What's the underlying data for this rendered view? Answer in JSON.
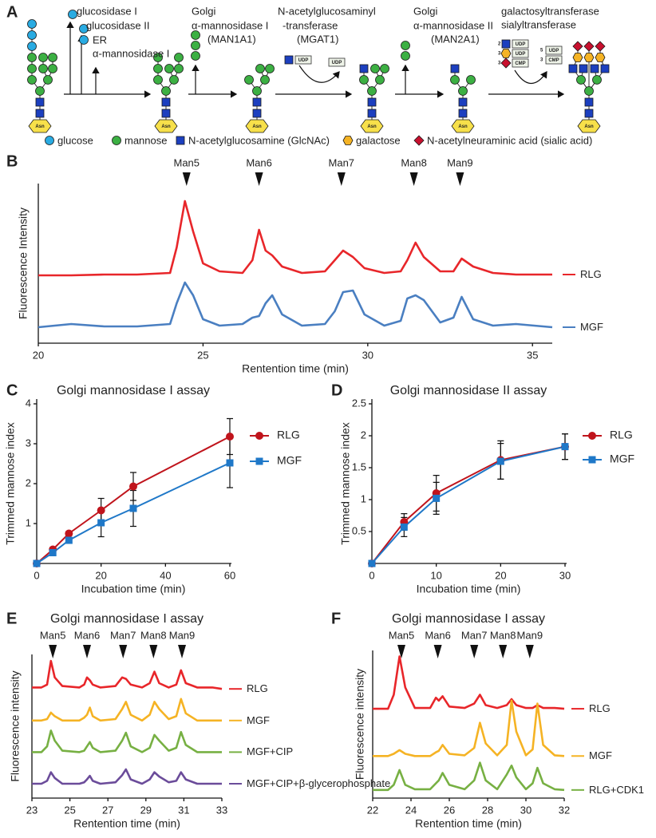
{
  "diagram": {
    "panel": "A",
    "steps": [
      [
        "glucosidase I",
        "glucosidase II",
        "ER",
        "α-mannosidase I"
      ],
      [
        "Golgi",
        "α-mannosidase I",
        "(MAN1A1)"
      ],
      [
        "N-acetylglucosaminyl",
        "-transferase",
        "(MGAT1)"
      ],
      [
        "Golgi",
        "α-mannosidase II",
        "(MAN2A1)"
      ],
      [
        "galactosyltransferase",
        "sialyltransferase"
      ]
    ],
    "residue": "Asn",
    "donors": {
      "mgat1": {
        "in": "UDP",
        "out": "UDP"
      },
      "glycosyl": {
        "in": [
          [
            "2",
            "UDP"
          ],
          [
            "3",
            "UDP"
          ],
          [
            "3",
            "CMP"
          ]
        ],
        "out": [
          [
            "5",
            "UDP"
          ],
          [
            "3",
            "CMP"
          ]
        ]
      }
    },
    "legend": [
      "glucose",
      "mannose",
      "N-acetylglucosamine (GlcNAc)",
      "galactose",
      "N-acetylneuraminic acid (sialic acid)"
    ]
  },
  "chart_data": [
    {
      "type": "chromatogram",
      "panel": "B",
      "xlabel": "Rentention time (min)",
      "ylabel": "Fluorescence Intensity",
      "xlim": [
        20,
        35.6
      ],
      "xticks": [
        20,
        25,
        30,
        35
      ],
      "ylim": [
        0,
        100
      ],
      "legend": "trace-end",
      "peaks": [
        {
          "label": "Man5",
          "x": 24.5
        },
        {
          "label": "Man6",
          "x": 26.7
        },
        {
          "label": "Man7",
          "x": 29.2
        },
        {
          "label": "Man8",
          "x": 31.4
        },
        {
          "label": "Man9",
          "x": 32.8
        }
      ],
      "x": [
        20,
        21,
        22,
        23,
        24,
        24.2,
        24.45,
        24.7,
        25,
        25.5,
        26.2,
        26.5,
        26.7,
        26.9,
        27.1,
        27.4,
        28,
        28.7,
        29,
        29.25,
        29.55,
        29.9,
        30.5,
        31,
        31.2,
        31.45,
        31.7,
        32.2,
        32.6,
        32.85,
        33.2,
        33.8,
        34.5,
        35.6
      ],
      "series": [
        {
          "name": "RLG",
          "color": "#e8262a",
          "values": [
            42.5,
            42.5,
            43,
            43,
            44,
            60,
            89,
            70,
            50,
            45,
            44,
            52,
            71,
            58,
            55,
            48,
            44,
            45,
            52,
            58,
            54,
            47,
            44,
            45,
            52,
            63,
            54,
            45,
            45,
            53,
            48,
            44,
            43,
            43
          ]
        },
        {
          "name": "MGF",
          "color": "#4a7fc1",
          "values": [
            10,
            12,
            10.5,
            10.5,
            12,
            25,
            38,
            30,
            15,
            11,
            12,
            16,
            17,
            25,
            30,
            18,
            11,
            12,
            20,
            32,
            33,
            18,
            11,
            14,
            28,
            30,
            27,
            13,
            16,
            29,
            15,
            11,
            12,
            10
          ]
        }
      ]
    },
    {
      "type": "line",
      "panel": "C",
      "title": "Golgi mannosidase I assay",
      "xlabel": "Incubation time (min)",
      "ylabel": "Trimmed mannose index",
      "xlim": [
        0,
        60
      ],
      "xticks": [
        0,
        20,
        40,
        60
      ],
      "ylim": [
        0,
        4
      ],
      "yticks": [
        1,
        2,
        3,
        4
      ],
      "legend": "right",
      "x": [
        0,
        5,
        10,
        20,
        30,
        60
      ],
      "series": [
        {
          "name": "RLG",
          "color": "#c0141c",
          "marker": "circle",
          "values": [
            0,
            0.35,
            0.75,
            1.33,
            1.93,
            3.18
          ],
          "errors": [
            0,
            0.05,
            0.05,
            0.3,
            0.35,
            0.45
          ]
        },
        {
          "name": "MGF",
          "color": "#1f78c8",
          "marker": "square",
          "values": [
            0,
            0.27,
            0.58,
            1.02,
            1.38,
            2.52
          ],
          "errors": [
            0,
            0.03,
            0.05,
            0.35,
            0.45,
            0.62
          ]
        }
      ]
    },
    {
      "type": "line",
      "panel": "D",
      "title": "Golgi mannosidase II assay",
      "xlabel": "Incubation time (min)",
      "ylabel": "Trimmed mannose index",
      "xlim": [
        0,
        30
      ],
      "xticks": [
        0,
        10,
        20,
        30
      ],
      "ylim": [
        0,
        2.5
      ],
      "yticks": [
        0.5,
        1,
        1.5,
        2,
        2.5
      ],
      "legend": "right",
      "x": [
        0,
        5,
        10,
        20,
        30
      ],
      "series": [
        {
          "name": "RLG",
          "color": "#c0141c",
          "marker": "circle",
          "values": [
            0,
            0.65,
            1.1,
            1.62,
            1.83
          ],
          "errors": [
            0,
            0.13,
            0.28,
            0.3,
            0.2
          ]
        },
        {
          "name": "MGF",
          "color": "#1f78c8",
          "marker": "square",
          "values": [
            0,
            0.57,
            1.02,
            1.6,
            1.83
          ],
          "errors": [
            0,
            0.15,
            0.25,
            0.28,
            0.2
          ]
        }
      ]
    },
    {
      "type": "chromatogram",
      "panel": "E",
      "title": "Golgi mannosidase I assay",
      "xlabel": "Rentention time (min)",
      "ylabel": "Fluorescence intensity",
      "xlim": [
        23,
        33
      ],
      "xticks": [
        23,
        25,
        27,
        29,
        31,
        33
      ],
      "ylim": [
        0,
        100
      ],
      "legend": "trace-end",
      "peaks": [
        {
          "label": "Man5",
          "x": 24.1
        },
        {
          "label": "Man6",
          "x": 25.9
        },
        {
          "label": "Man7",
          "x": 27.8
        },
        {
          "label": "Man8",
          "x": 29.4
        },
        {
          "label": "Man9",
          "x": 30.9
        }
      ],
      "x": [
        23,
        23.5,
        23.8,
        24,
        24.2,
        24.6,
        25.5,
        25.75,
        25.9,
        26.05,
        26.2,
        26.6,
        27.4,
        27.75,
        27.95,
        28.2,
        28.8,
        29.2,
        29.45,
        29.7,
        30.2,
        30.6,
        30.85,
        31.1,
        31.7,
        32.5,
        33
      ],
      "series": [
        {
          "name": "RLG",
          "color": "#e8262a",
          "values": [
            77,
            77,
            79,
            95.5,
            84,
            78,
            77,
            79,
            84,
            82,
            79,
            77,
            78,
            84,
            83,
            79,
            77,
            80,
            88,
            80,
            77,
            79,
            89,
            80,
            77,
            77,
            76
          ]
        },
        {
          "name": "MGF",
          "color": "#f5b324",
          "values": [
            54,
            54,
            55,
            59.5,
            57,
            54,
            54,
            56,
            58,
            63,
            57,
            54,
            55,
            62,
            67,
            58,
            54,
            58,
            67,
            62,
            55,
            57,
            69,
            59,
            54,
            54,
            54
          ]
        },
        {
          "name": "MGF+CIP",
          "color": "#77b043",
          "values": [
            32,
            32,
            36,
            47,
            40,
            33,
            32,
            33,
            36,
            39,
            35,
            32,
            33,
            40,
            45.5,
            36,
            32,
            35,
            44,
            40,
            33,
            35,
            46,
            37,
            32,
            32,
            32
          ]
        },
        {
          "name": "MGF+CIP+β-glycerophosphate",
          "color": "#6b4c9a",
          "values": [
            10,
            10,
            12,
            18,
            14,
            10,
            10,
            11,
            13,
            15.5,
            12,
            10,
            11,
            16,
            20,
            13,
            10,
            13,
            18,
            15,
            11,
            12,
            18,
            13,
            10,
            10,
            10
          ]
        }
      ]
    },
    {
      "type": "chromatogram",
      "panel": "F",
      "title": "Golgi mannosidase I assay",
      "xlabel": "Rentention time (min)",
      "ylabel": "Fluorescence intensity",
      "xlim": [
        22,
        32
      ],
      "xticks": [
        22,
        24,
        26,
        28,
        30,
        32
      ],
      "ylim": [
        0,
        100
      ],
      "legend": "trace-end",
      "peaks": [
        {
          "label": "Man5",
          "x": 23.5
        },
        {
          "label": "Man6",
          "x": 25.4
        },
        {
          "label": "Man7",
          "x": 27.3
        },
        {
          "label": "Man8",
          "x": 28.8
        },
        {
          "label": "Man9",
          "x": 30.2
        }
      ],
      "x": [
        22,
        22.8,
        23.1,
        23.4,
        23.7,
        24.2,
        25,
        25.3,
        25.45,
        25.65,
        26,
        26.8,
        27.3,
        27.6,
        27.9,
        28.5,
        29,
        29.25,
        29.5,
        30,
        30.35,
        30.6,
        30.9,
        31.5,
        32
      ],
      "series": [
        {
          "name": "RLG",
          "color": "#e8262a",
          "values": [
            60.5,
            60.5,
            70,
            96,
            75,
            61,
            61,
            68,
            66,
            69,
            62,
            61,
            64,
            70,
            63,
            61,
            63,
            67,
            63,
            61,
            61,
            63,
            61,
            61,
            60.5
          ]
        },
        {
          "name": "MGF",
          "color": "#f5b324",
          "values": [
            28.5,
            28.5,
            30,
            32.5,
            30,
            28.5,
            28.5,
            31,
            32,
            36,
            30,
            29,
            34,
            51,
            37,
            29,
            36,
            66,
            45,
            29,
            33,
            64,
            36,
            29,
            28.5
          ]
        },
        {
          "name": "RLG+CDK1",
          "color": "#77b043",
          "values": [
            5.5,
            5.5,
            9,
            19,
            9,
            6,
            6,
            10,
            12,
            17,
            9,
            6,
            12,
            24,
            12,
            6,
            16,
            22,
            14,
            6,
            10,
            20.5,
            10,
            6,
            5.5
          ]
        }
      ]
    }
  ]
}
